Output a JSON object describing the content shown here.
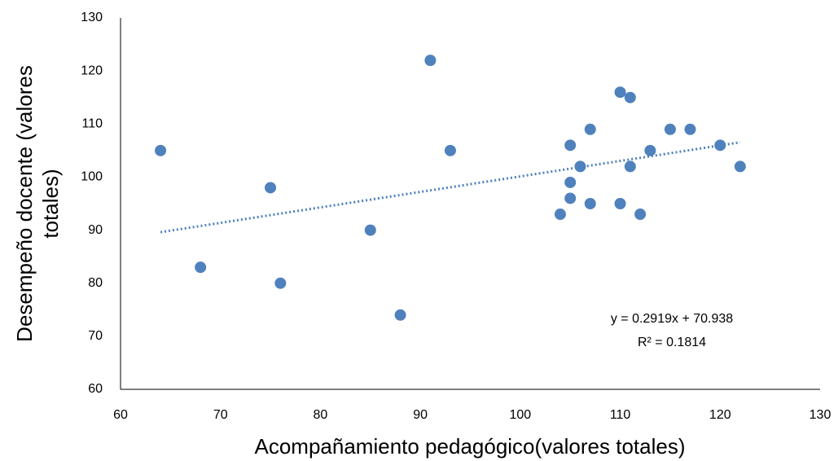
{
  "chart_data": {
    "type": "scatter",
    "x_label": "Acompañamiento pedagógico(valores totales)",
    "y_label": [
      "Desempeño docente (valores",
      "totales)"
    ],
    "color": "#4f81bd",
    "x": [
      64,
      68,
      75,
      76,
      85,
      88,
      91,
      93,
      104,
      105,
      105,
      105,
      106,
      107,
      107,
      110,
      110,
      111,
      111,
      112,
      113,
      115,
      117,
      120,
      122
    ],
    "y": [
      105,
      83,
      98,
      80,
      90,
      74,
      122,
      105,
      93,
      106,
      99,
      96,
      102,
      109,
      95,
      116,
      95,
      115,
      102,
      93,
      105,
      109,
      109,
      106,
      102
    ],
    "xlim": [
      60,
      130
    ],
    "xticks": [
      60,
      70,
      80,
      90,
      100,
      110,
      120,
      130
    ],
    "ylim": [
      60,
      130
    ],
    "yticks": [
      60,
      70,
      80,
      90,
      100,
      110,
      120,
      130
    ],
    "grid": false,
    "trendline": {
      "slope": 0.2919,
      "intercept": 70.938,
      "label": "y = 0.2919x + 70.938",
      "r_squared": 0.1814,
      "r_squared_label": "R² = 0.1814"
    }
  }
}
